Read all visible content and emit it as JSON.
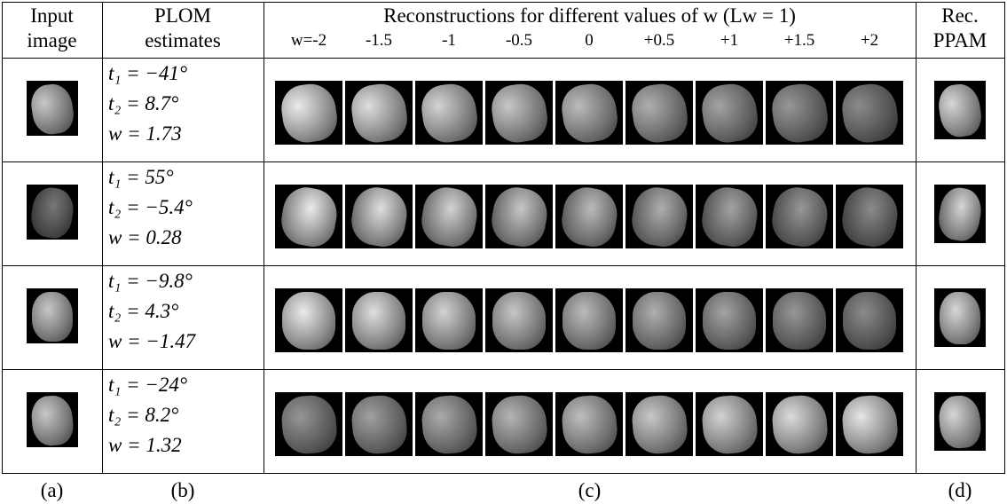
{
  "header": {
    "input": [
      "Input",
      "image"
    ],
    "plom": [
      "PLOM",
      "estimates"
    ],
    "recon_title": "Reconstructions for different values of w (Lw = 1)",
    "w_values": [
      "w=-2",
      "-1.5",
      "-1",
      "-0.5",
      "0",
      "+0.5",
      "+1",
      "+1.5",
      "+2"
    ],
    "ppam": [
      "Rec.",
      "PPAM"
    ]
  },
  "rows": [
    {
      "estimates": [
        "t₁ = −41°",
        "t₂ = 8.7°",
        "w = 1.73"
      ]
    },
    {
      "estimates": [
        "t₁ = 55°",
        "t₂ = −5.4°",
        "w = 0.28"
      ]
    },
    {
      "estimates": [
        "t₁ = −9.8°",
        "t₂ = 4.3°",
        "w = −1.47"
      ]
    },
    {
      "estimates": [
        "t₁ = −24°",
        "t₂ = 8.2°",
        "w = 1.32"
      ]
    }
  ],
  "footer": [
    "(a)",
    "(b)",
    "(c)",
    "(d)"
  ]
}
